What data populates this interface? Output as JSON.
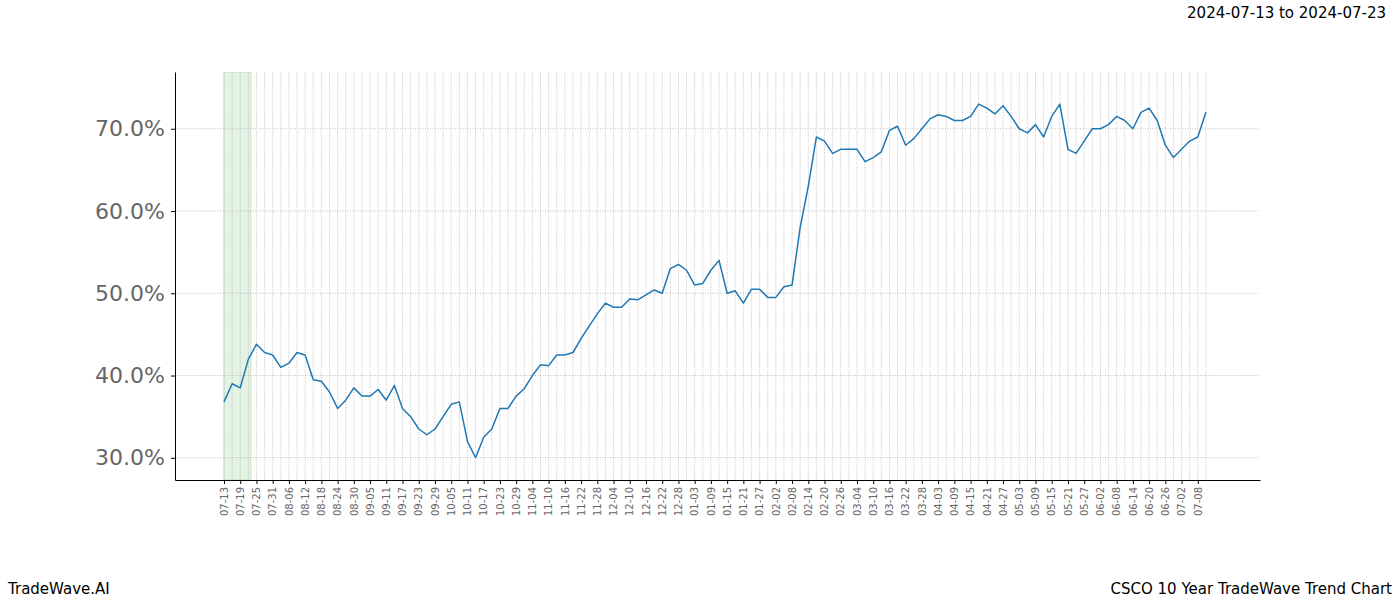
{
  "chart_data": {
    "type": "line",
    "title": "CSCO 10 Year TradeWave Trend Chart",
    "subtitle": "2024-07-13 to 2024-07-23",
    "annotations": [
      "TradeWave.AI"
    ],
    "categories": [
      "07-13",
      null,
      "07-19",
      null,
      "07-25",
      null,
      "07-31",
      null,
      "08-06",
      null,
      "08-12",
      null,
      "08-18",
      null,
      "08-24",
      null,
      "08-30",
      null,
      "09-05",
      null,
      "09-11",
      null,
      "09-17",
      null,
      "09-23",
      null,
      "09-29",
      null,
      "10-05",
      null,
      "10-11",
      null,
      "10-17",
      null,
      "10-23",
      null,
      "10-29",
      null,
      "11-04",
      null,
      "11-10",
      null,
      "11-16",
      null,
      "11-22",
      null,
      "11-28",
      null,
      "12-04",
      null,
      "12-10",
      null,
      "12-16",
      null,
      "12-22",
      null,
      "12-28",
      null,
      "01-03",
      null,
      "01-09",
      null,
      "01-15",
      null,
      "01-21",
      null,
      "01-27",
      null,
      "02-02",
      null,
      "02-08",
      null,
      "02-14",
      null,
      "02-20",
      null,
      "02-26",
      null,
      "03-04",
      null,
      "03-10",
      null,
      "03-16",
      null,
      "03-22",
      null,
      "03-28",
      null,
      "04-03",
      null,
      "04-09",
      null,
      "04-15",
      null,
      "04-21",
      null,
      "04-27",
      null,
      "05-03",
      null,
      "05-09",
      null,
      "05-15",
      null,
      "05-21",
      null,
      "05-27",
      null,
      "06-02",
      null,
      "06-08",
      null,
      "06-14",
      null,
      "06-20",
      null,
      "06-26",
      null,
      "07-02",
      null,
      "07-08",
      null
    ],
    "values": [
      36.8,
      39,
      38.5,
      42,
      43.8,
      42.8,
      42.5,
      41,
      41.5,
      42.8,
      42.5,
      39.5,
      39.3,
      38,
      36,
      37,
      38.5,
      37.5,
      37.5,
      38.3,
      37,
      38.8,
      36,
      35,
      33.5,
      32.8,
      33.5,
      35,
      36.5,
      36.8,
      32,
      30,
      32.5,
      33.5,
      36,
      36,
      37.5,
      38.4,
      40,
      41.3,
      41.2,
      42.5,
      42.5,
      42.8,
      44.5,
      46,
      47.5,
      48.8,
      48.3,
      48.3,
      49.3,
      49.2,
      49.8,
      50.4,
      50,
      53,
      53.5,
      52.8,
      51,
      51.2,
      52.8,
      54,
      50,
      50.3,
      48.8,
      50.5,
      50.5,
      49.5,
      49.5,
      50.8,
      51,
      58,
      63,
      69,
      68.5,
      67,
      67.5,
      67.5,
      67.5,
      66,
      66.5,
      67.2,
      69.8,
      70.3,
      68,
      68.8,
      70,
      71.2,
      71.7,
      71.5,
      71,
      71,
      71.5,
      73,
      72.5,
      71.8,
      72.8,
      71.5,
      70,
      69.5,
      70.5,
      69,
      71.5,
      73,
      67.5,
      67,
      68.5,
      70,
      70,
      70.5,
      71.5,
      71,
      70,
      72,
      72.5,
      71,
      68,
      66.5,
      67.5,
      68.5,
      69,
      72
    ],
    "color": "#1f77b4",
    "highlight": [
      0,
      3.33
    ],
    "ylim": [
      27.3,
      76.9
    ],
    "yticks": [
      {
        "value": 30,
        "label": "30.0%"
      },
      {
        "value": 40,
        "label": "40.0%"
      },
      {
        "value": 50,
        "label": "50.0%"
      },
      {
        "value": 60,
        "label": "60.0%"
      },
      {
        "value": 70,
        "label": "70.0%"
      }
    ],
    "grid": true
  }
}
